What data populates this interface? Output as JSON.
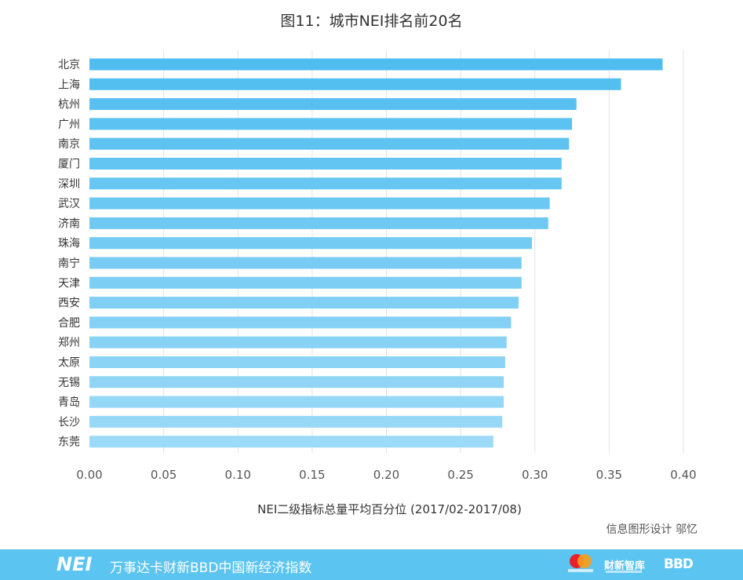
{
  "chart_data": {
    "type": "bar",
    "orientation": "horizontal",
    "title": "图11：城市NEI排名前20名",
    "xlabel": "NEI二级指标总量平均百分位 (2017/02-2017/08)",
    "ylabel": "",
    "xlim": [
      0,
      0.4
    ],
    "xticks": [
      "0.00",
      "0.05",
      "0.10",
      "0.15",
      "0.20",
      "0.25",
      "0.30",
      "0.35",
      "0.40"
    ],
    "grid": "vertical",
    "categories": [
      "北京",
      "上海",
      "杭州",
      "广州",
      "南京",
      "厦门",
      "深圳",
      "武汉",
      "济南",
      "珠海",
      "南宁",
      "天津",
      "西安",
      "合肥",
      "郑州",
      "太原",
      "无锡",
      "青岛",
      "长沙",
      "东莞"
    ],
    "values": [
      0.386,
      0.358,
      0.328,
      0.325,
      0.323,
      0.318,
      0.318,
      0.31,
      0.309,
      0.298,
      0.291,
      0.291,
      0.289,
      0.284,
      0.281,
      0.28,
      0.279,
      0.279,
      0.278,
      0.272
    ],
    "color_top": "#4fbdf0",
    "color_bottom": "#9cdaf7",
    "grid_color": "#e3e3e3"
  },
  "credit": "信息图形设计 邬忆",
  "footer": {
    "logo": "NEI",
    "index_name": "万事达卡财新BBD中国新经济指数",
    "partner_caixin": "财新智库",
    "partner_bbd": "BBD"
  },
  "colors": {
    "footer_bg": "#5bc4f0",
    "text": "#333333"
  }
}
